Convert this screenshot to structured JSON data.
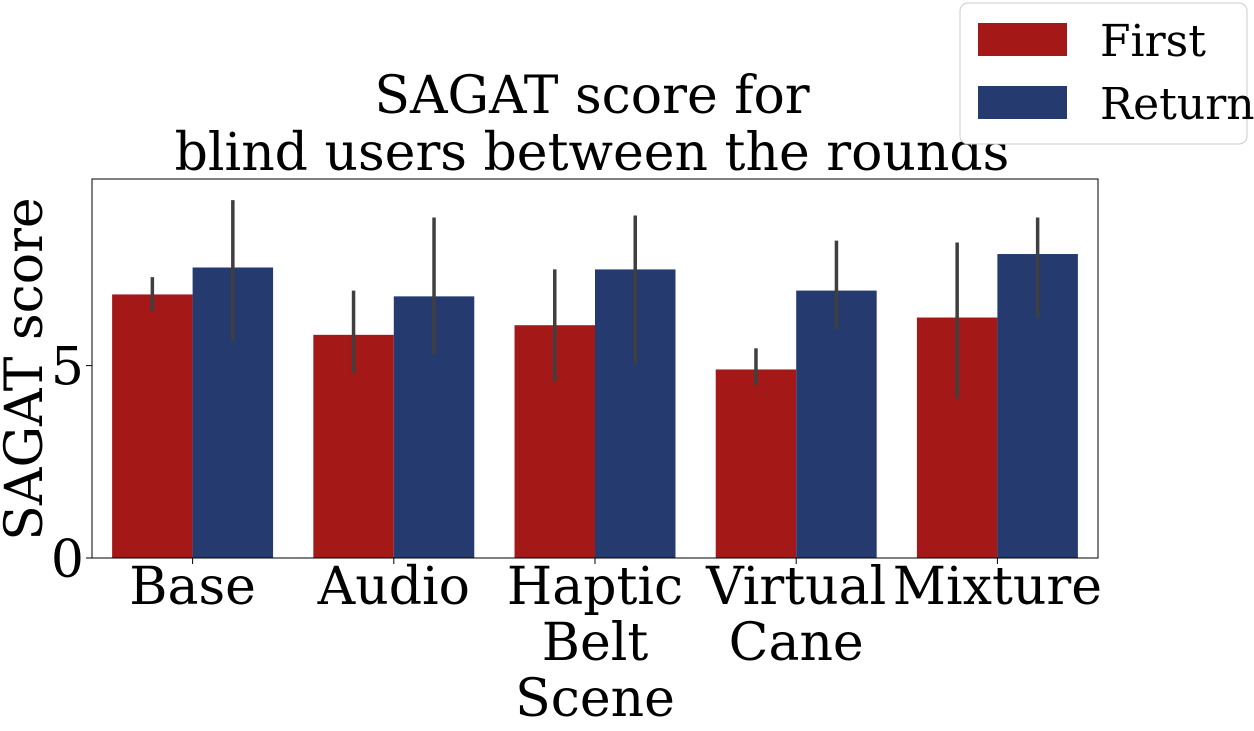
{
  "chart_data": {
    "type": "bar",
    "title": [
      "SAGAT score for",
      "blind users between the rounds"
    ],
    "xlabel": "",
    "ylabel": "SAGAT score",
    "categories": [
      [
        "Base"
      ],
      [
        "Audio"
      ],
      [
        "Haptic",
        "Belt",
        "Scene"
      ],
      [
        "Virtual",
        "Cane"
      ],
      [
        "Mixture"
      ]
    ],
    "series": [
      {
        "name": "First",
        "color": "#a51818",
        "values": [
          6.85,
          5.8,
          6.05,
          4.9,
          6.25
        ],
        "ci": [
          [
            6.4,
            7.3
          ],
          [
            4.8,
            6.95
          ],
          [
            4.6,
            7.5
          ],
          [
            4.5,
            5.45
          ],
          [
            4.15,
            8.2
          ]
        ]
      },
      {
        "name": "Return",
        "color": "#253a6e",
        "values": [
          7.55,
          6.8,
          7.5,
          6.95,
          7.9
        ],
        "ci": [
          [
            5.65,
            9.3
          ],
          [
            5.3,
            8.85
          ],
          [
            5.05,
            8.9
          ],
          [
            5.95,
            8.25
          ],
          [
            6.25,
            8.85
          ]
        ]
      }
    ],
    "ylim": [
      0,
      9.85
    ],
    "yticks": [
      "0",
      "5"
    ],
    "grid": false,
    "legend_position": "top-right"
  }
}
